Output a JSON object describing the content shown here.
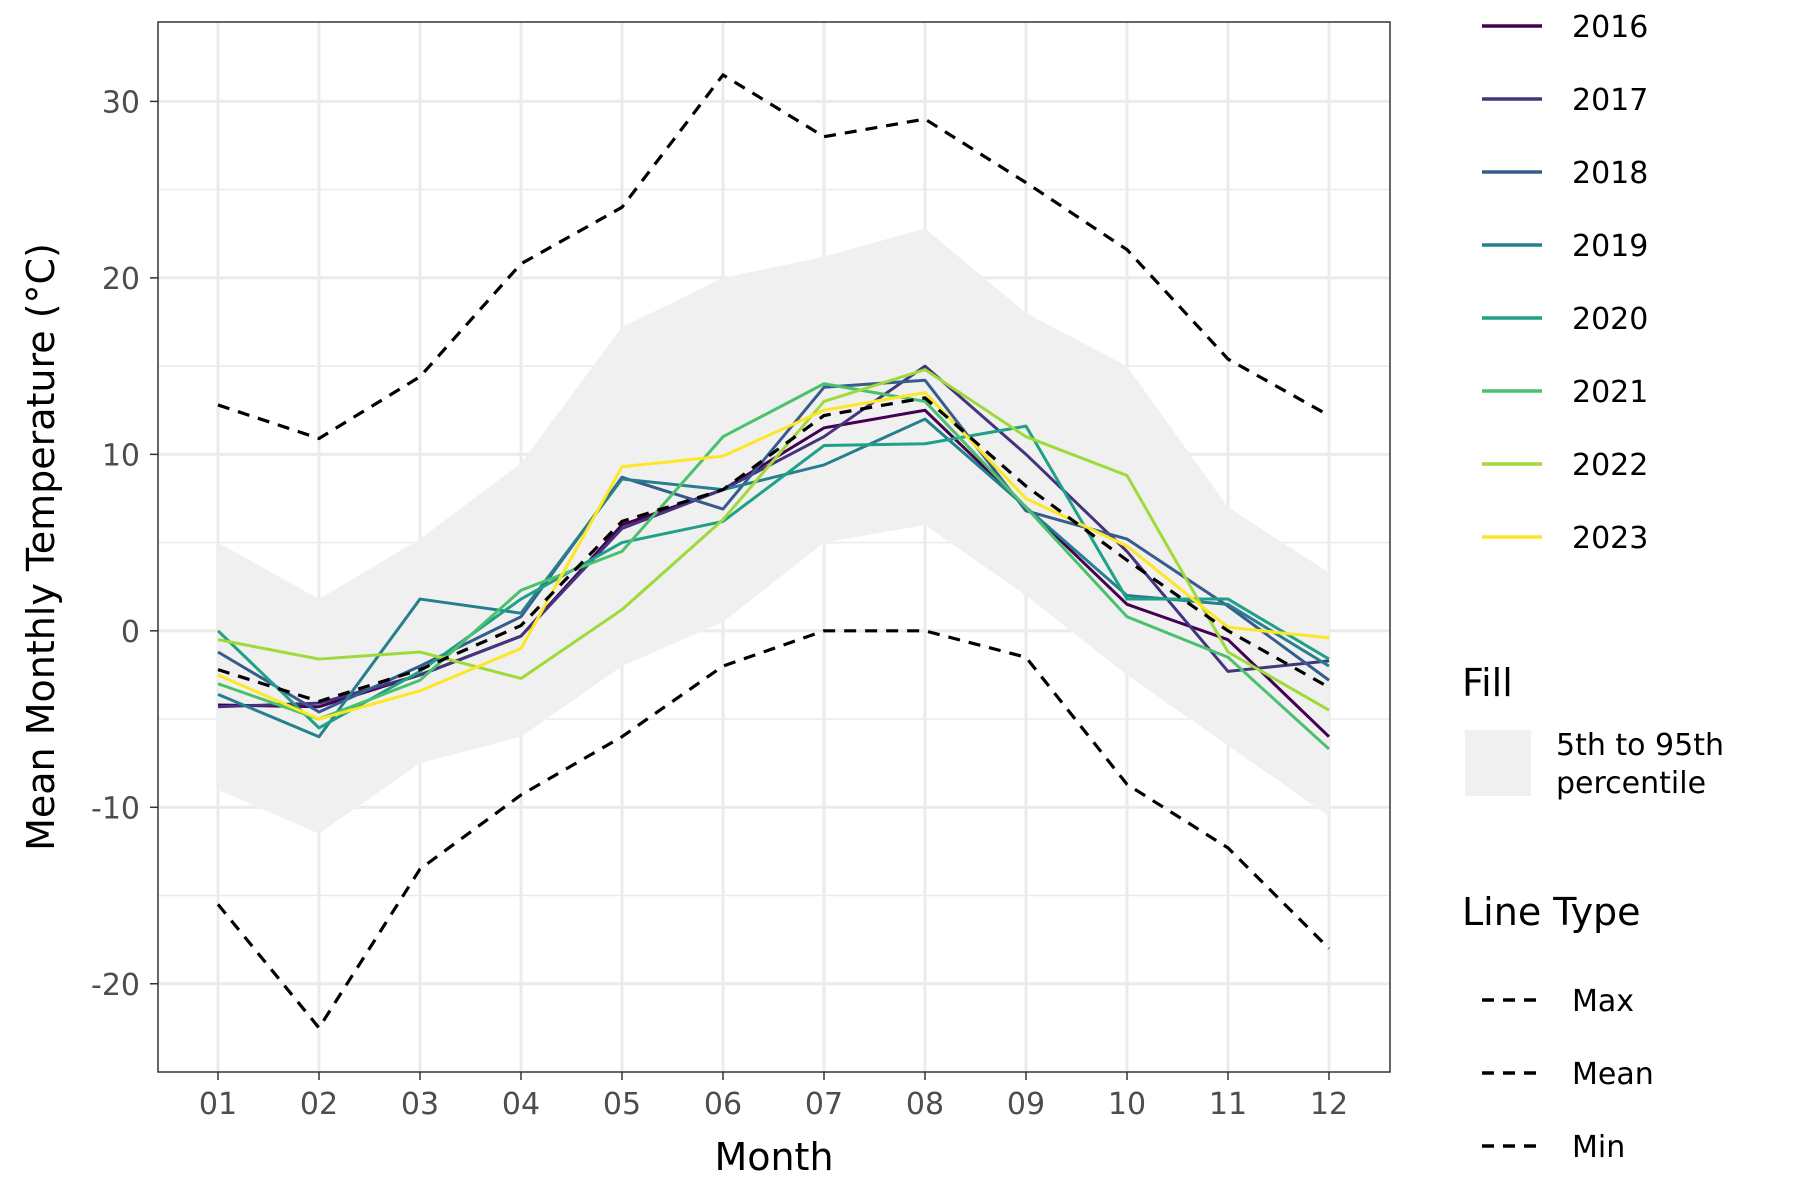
{
  "chart_data": {
    "type": "line",
    "xlabel": "Month",
    "ylabel": "Mean Monthly Temperature (°C)",
    "categories": [
      "01",
      "02",
      "03",
      "04",
      "05",
      "06",
      "07",
      "08",
      "09",
      "10",
      "11",
      "12"
    ],
    "ylim": [
      -25,
      34.5
    ],
    "yticks": [
      -20,
      -10,
      0,
      10,
      20,
      30
    ],
    "grid": true,
    "legend_position": "right",
    "band": {
      "name": "5th to 95th percentile",
      "lower": [
        -9,
        -11.5,
        -7.5,
        -6,
        -2,
        0.5,
        5,
        6,
        2,
        -2.5,
        -6.5,
        -10.5
      ],
      "upper": [
        5,
        1.8,
        5.2,
        9.5,
        17.2,
        20,
        21.2,
        22.8,
        18,
        15,
        7,
        3.3
      ],
      "color": "#f0f0f0"
    },
    "series": [
      {
        "name": "2016",
        "color": "#440154",
        "values": [
          -4.2,
          -4.3,
          -2.5,
          -0.3,
          6,
          8,
          11.5,
          12.5,
          7,
          1.5,
          -0.5,
          -6
        ]
      },
      {
        "name": "2017",
        "color": "#46337E",
        "values": [
          -4.3,
          -4.1,
          -2.5,
          -0.3,
          5.8,
          8,
          11,
          15,
          10,
          4.5,
          -2.3,
          -1.7
        ]
      },
      {
        "name": "2018",
        "color": "#365C8D",
        "values": [
          -1.2,
          -4.6,
          -2,
          0.8,
          8.7,
          6.9,
          13.8,
          14.2,
          6.8,
          5.2,
          1.4,
          -2.8
        ]
      },
      {
        "name": "2019",
        "color": "#277F8E",
        "values": [
          -3.6,
          -6,
          1.8,
          1,
          8.6,
          8,
          9.4,
          12,
          7,
          2,
          1.5,
          -2
        ]
      },
      {
        "name": "2020",
        "color": "#1FA187",
        "values": [
          0,
          -5.5,
          -2.3,
          1.8,
          5,
          6.2,
          10.5,
          10.6,
          11.6,
          1.8,
          1.8,
          -1.6
        ]
      },
      {
        "name": "2021",
        "color": "#4AC16D",
        "values": [
          -3,
          -5,
          -2.8,
          2.3,
          4.5,
          11,
          14,
          13,
          7,
          0.8,
          -1.5,
          -6.7
        ]
      },
      {
        "name": "2022",
        "color": "#9FDA3A",
        "values": [
          -0.5,
          -1.6,
          -1.2,
          -2.7,
          1.2,
          6.3,
          13,
          14.8,
          11,
          8.8,
          -1.2,
          -4.5
        ]
      },
      {
        "name": "2023",
        "color": "#FDE725",
        "values": [
          -2.5,
          -5,
          -3.4,
          -1,
          9.3,
          9.9,
          12.5,
          13.5,
          7.5,
          4.8,
          0.2,
          -0.4
        ]
      }
    ],
    "reference_lines": [
      {
        "name": "Max",
        "values": [
          12.8,
          10.9,
          14.4,
          20.8,
          24,
          31.5,
          28,
          29,
          25.4,
          21.6,
          15.4,
          12.2
        ]
      },
      {
        "name": "Mean",
        "values": [
          -2.2,
          -4,
          -2.2,
          0.3,
          6.2,
          8,
          12.2,
          13.2,
          8.2,
          4,
          0,
          -3.2
        ]
      },
      {
        "name": "Min",
        "values": [
          -15.5,
          -22.5,
          -13.5,
          -9.3,
          -6,
          -2,
          0,
          0,
          -1.5,
          -8.7,
          -12.3,
          -18
        ]
      }
    ]
  },
  "legend": {
    "fill_title": "Fill",
    "fill_label_line1": "5th to 95th",
    "fill_label_line2": "percentile",
    "linetype_title": "Line Type"
  }
}
